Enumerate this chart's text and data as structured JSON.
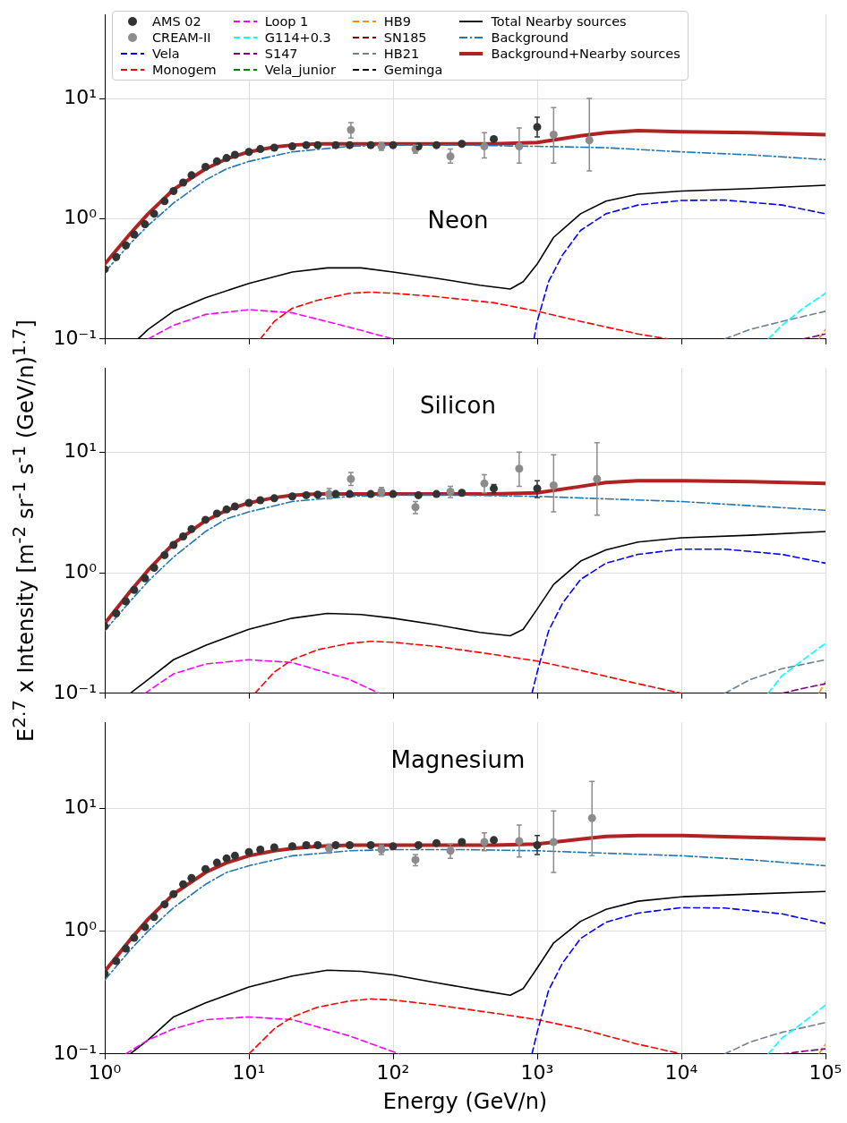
{
  "chart_data": [
    {
      "type": "line",
      "title": "Neon",
      "log": "xy",
      "grid": true,
      "legend": "top",
      "tick_labels": "y",
      "xlim": [
        1,
        100000
      ],
      "ylim": [
        0.1,
        50
      ],
      "xticks": [
        {
          "value": 1,
          "label": null
        },
        {
          "value": 10,
          "label": null
        },
        {
          "value": 100,
          "label": null
        },
        {
          "value": 1000,
          "label": null
        },
        {
          "value": 10000,
          "label": null
        },
        {
          "value": 100000,
          "label": null
        }
      ],
      "yticks": [
        {
          "value": 0.1,
          "label": "10⁻¹"
        },
        {
          "value": 1,
          "label": "10⁰"
        },
        {
          "value": 10,
          "label": "10¹"
        }
      ],
      "series": [
        {
          "name": "AMS 02",
          "type": "scatter",
          "marker": "circle",
          "color": "#333333",
          "x": [
            1,
            1.2,
            1.4,
            1.6,
            1.9,
            2.2,
            2.6,
            3,
            3.5,
            4,
            5,
            6,
            7,
            8,
            10,
            12,
            15,
            20,
            25,
            30,
            40,
            50,
            70,
            100,
            150,
            200,
            300,
            500,
            1000
          ],
          "values": [
            0.38,
            0.48,
            0.6,
            0.74,
            0.9,
            1.1,
            1.4,
            1.7,
            2.0,
            2.3,
            2.7,
            3.0,
            3.2,
            3.4,
            3.6,
            3.8,
            3.9,
            4.0,
            4.1,
            4.1,
            4.1,
            4.1,
            4.1,
            4.1,
            4.0,
            4.1,
            4.2,
            4.6,
            5.8
          ],
          "errors": [
            null,
            null,
            null,
            null,
            null,
            null,
            null,
            null,
            null,
            null,
            null,
            null,
            null,
            null,
            null,
            null,
            null,
            null,
            null,
            null,
            null,
            null,
            null,
            null,
            null,
            null,
            null,
            null,
            [
              4.8,
              7.0
            ]
          ]
        },
        {
          "name": "CREAM-II",
          "type": "scatter",
          "marker": "circle",
          "color": "#8c8c8c",
          "x": [
            51,
            83,
            143,
            250,
            430,
            750,
            1300,
            2300
          ],
          "values": [
            5.5,
            4.0,
            3.8,
            3.3,
            4.0,
            4.0,
            5.0,
            4.5
          ],
          "errors": [
            [
              4.7,
              6.3
            ],
            [
              3.7,
              4.3
            ],
            [
              3.5,
              4.1
            ],
            [
              2.9,
              3.8
            ],
            [
              3.2,
              5.2
            ],
            [
              2.9,
              5.7
            ],
            [
              2.9,
              8.4
            ],
            [
              2.5,
              10
            ]
          ]
        },
        {
          "name": "Vela",
          "color": "#0000ff",
          "line_style": "dashed",
          "x": [
            950,
            1000,
            1200,
            1500,
            2000,
            3000,
            5000,
            10000,
            20000,
            50000,
            100000
          ],
          "values": [
            0.1,
            0.14,
            0.3,
            0.5,
            0.8,
            1.1,
            1.3,
            1.42,
            1.43,
            1.3,
            1.1
          ]
        },
        {
          "name": "Monogem",
          "color": "#ff0000",
          "line_style": "dashed",
          "x": [
            12,
            15,
            20,
            30,
            50,
            70,
            100,
            200,
            500,
            1000,
            2000,
            5000,
            8000
          ],
          "values": [
            0.1,
            0.14,
            0.18,
            0.21,
            0.24,
            0.245,
            0.24,
            0.225,
            0.2,
            0.17,
            0.14,
            0.11,
            0.1
          ]
        },
        {
          "name": "Loop 1",
          "color": "#ff00ff",
          "line_style": "dashed",
          "x": [
            2,
            3,
            5,
            10,
            20,
            50,
            100
          ],
          "values": [
            0.1,
            0.13,
            0.16,
            0.175,
            0.165,
            0.125,
            0.1
          ]
        },
        {
          "name": "G114+0.3",
          "color": "#00ffff",
          "line_style": "dashed",
          "x": [
            40000,
            50000,
            70000,
            100000
          ],
          "values": [
            0.1,
            0.13,
            0.18,
            0.24
          ]
        },
        {
          "name": "S147",
          "color": "#800080",
          "line_style": "dashed",
          "x": [
            70000,
            100000
          ],
          "values": [
            0.1,
            0.11
          ]
        },
        {
          "name": "Vela_junior",
          "color": "#008000",
          "line_style": "dashed"
        },
        {
          "name": "HB9",
          "color": "#ff8c00",
          "line_style": "dashed",
          "x": [
            90000,
            100000
          ],
          "values": [
            0.1,
            0.12
          ]
        },
        {
          "name": "SN185",
          "color": "#8b0000",
          "line_style": "dashed"
        },
        {
          "name": "HB21",
          "color": "#708090",
          "line_style": "dashed",
          "x": [
            20000,
            30000,
            50000,
            100000
          ],
          "values": [
            0.1,
            0.12,
            0.14,
            0.17
          ]
        },
        {
          "name": "Geminga",
          "color": "#000000",
          "line_style": "dashed"
        },
        {
          "name": "Total Nearby sources",
          "color": "#000000",
          "line_style": "solid",
          "x": [
            1.7,
            2,
            3,
            5,
            10,
            20,
            35,
            60,
            100,
            200,
            400,
            650,
            800,
            1000,
            1300,
            2000,
            3000,
            5000,
            10000,
            30000,
            100000
          ],
          "values": [
            0.1,
            0.12,
            0.17,
            0.22,
            0.29,
            0.36,
            0.39,
            0.39,
            0.36,
            0.32,
            0.28,
            0.26,
            0.3,
            0.42,
            0.7,
            1.1,
            1.4,
            1.6,
            1.7,
            1.78,
            1.9
          ]
        },
        {
          "name": "Background",
          "color": "#1f77b4",
          "line_style": "dashdot",
          "x": [
            1,
            1.5,
            2,
            3,
            5,
            7,
            10,
            20,
            50,
            100,
            300,
            1000,
            3000,
            10000,
            30000,
            100000
          ],
          "values": [
            0.36,
            0.62,
            0.88,
            1.35,
            2.1,
            2.6,
            3.0,
            3.6,
            4.0,
            4.1,
            4.1,
            4.0,
            3.9,
            3.6,
            3.4,
            3.1
          ]
        },
        {
          "name": "Background+Nearby sources",
          "color": "#b22222",
          "line_style": "solid",
          "x": [
            1,
            1.5,
            2,
            3,
            5,
            7,
            10,
            15,
            20,
            30,
            50,
            100,
            200,
            500,
            1000,
            2000,
            3000,
            5000,
            10000,
            30000,
            100000
          ],
          "values": [
            0.42,
            0.75,
            1.1,
            1.75,
            2.6,
            3.15,
            3.6,
            3.95,
            4.1,
            4.2,
            4.2,
            4.2,
            4.2,
            4.2,
            4.3,
            4.9,
            5.2,
            5.4,
            5.3,
            5.2,
            5.0
          ]
        }
      ]
    },
    {
      "type": "line",
      "title": "Silicon",
      "log": "xy",
      "grid": true,
      "tick_labels": "y",
      "ylabel": "E$^{2.7}$ x Intensity [m$^{-2}$ sr$^{-1}$ s$^{-1}$ (GeV/n)$^{1.7}$]",
      "xlim": [
        1,
        100000
      ],
      "ylim": [
        0.1,
        50
      ],
      "xticks": [
        {
          "value": 1,
          "label": null
        },
        {
          "value": 10,
          "label": null
        },
        {
          "value": 100,
          "label": null
        },
        {
          "value": 1000,
          "label": null
        },
        {
          "value": 10000,
          "label": null
        },
        {
          "value": 100000,
          "label": null
        }
      ],
      "yticks": [
        {
          "value": 0.1,
          "label": "10⁻¹"
        },
        {
          "value": 1,
          "label": "10⁰"
        },
        {
          "value": 10,
          "label": "10¹"
        }
      ],
      "series": [
        {
          "type": "scatter",
          "marker": "circle",
          "color": "#333333",
          "x": [
            1,
            1.2,
            1.4,
            1.6,
            1.9,
            2.2,
            2.6,
            3,
            3.5,
            4,
            5,
            6,
            7,
            8,
            10,
            12,
            15,
            20,
            25,
            30,
            40,
            50,
            70,
            100,
            150,
            200,
            300,
            500,
            1000
          ],
          "values": [
            0.36,
            0.46,
            0.58,
            0.72,
            0.9,
            1.1,
            1.4,
            1.7,
            2.0,
            2.3,
            2.75,
            3.1,
            3.35,
            3.55,
            3.8,
            4.0,
            4.15,
            4.3,
            4.4,
            4.45,
            4.5,
            4.5,
            4.5,
            4.5,
            4.4,
            4.5,
            4.6,
            5.0,
            5.0
          ],
          "errors": [
            null,
            null,
            null,
            null,
            null,
            null,
            null,
            null,
            null,
            null,
            null,
            null,
            null,
            null,
            null,
            null,
            null,
            null,
            null,
            null,
            null,
            null,
            null,
            null,
            null,
            null,
            null,
            [
              4.6,
              5.4
            ],
            [
              4.2,
              5.8
            ]
          ]
        },
        {
          "type": "scatter",
          "marker": "circle",
          "color": "#8c8c8c",
          "x": [
            36,
            51,
            83,
            143,
            250,
            430,
            750,
            1300,
            2600
          ],
          "values": [
            4.5,
            6.0,
            4.7,
            3.5,
            4.7,
            5.5,
            7.3,
            5.3,
            6.0
          ],
          "errors": [
            [
              4.1,
              5.0
            ],
            [
              5.3,
              6.8
            ],
            [
              4.3,
              5.1
            ],
            [
              3.1,
              3.9
            ],
            [
              4.2,
              5.2
            ],
            [
              4.6,
              6.5
            ],
            [
              5.2,
              10
            ],
            [
              3.2,
              9.5
            ],
            [
              3.0,
              12
            ]
          ]
        },
        {
          "color": "#0000ff",
          "line_style": "dashed",
          "x": [
            920,
            1000,
            1200,
            1500,
            2000,
            3000,
            5000,
            10000,
            20000,
            50000,
            100000
          ],
          "values": [
            0.1,
            0.15,
            0.33,
            0.56,
            0.88,
            1.2,
            1.42,
            1.57,
            1.57,
            1.42,
            1.2
          ]
        },
        {
          "color": "#ff0000",
          "line_style": "dashed",
          "x": [
            11,
            15,
            20,
            30,
            50,
            70,
            100,
            200,
            500,
            1000,
            2000,
            5000,
            10000
          ],
          "values": [
            0.1,
            0.15,
            0.19,
            0.23,
            0.26,
            0.27,
            0.265,
            0.245,
            0.21,
            0.185,
            0.155,
            0.12,
            0.1
          ]
        },
        {
          "color": "#ff00ff",
          "line_style": "dashed",
          "x": [
            1.9,
            3,
            5,
            10,
            20,
            50,
            80
          ],
          "values": [
            0.1,
            0.145,
            0.175,
            0.19,
            0.18,
            0.13,
            0.1
          ]
        },
        {
          "color": "#00ffff",
          "line_style": "dashed",
          "x": [
            40000,
            50000,
            70000,
            100000
          ],
          "values": [
            0.1,
            0.14,
            0.19,
            0.26
          ]
        },
        {
          "color": "#800080",
          "line_style": "dashed",
          "x": [
            50000,
            70000,
            100000
          ],
          "values": [
            0.1,
            0.11,
            0.12
          ]
        },
        {
          "color": "#ff8c00",
          "line_style": "dashed",
          "x": [
            90000,
            100000
          ],
          "values": [
            0.1,
            0.125
          ]
        },
        {
          "color": "#708090",
          "line_style": "dashed",
          "x": [
            20000,
            30000,
            50000,
            100000
          ],
          "values": [
            0.1,
            0.13,
            0.16,
            0.19
          ]
        },
        {
          "color": "#000000",
          "line_style": "solid",
          "x": [
            1.5,
            2,
            3,
            5,
            10,
            20,
            35,
            60,
            100,
            200,
            400,
            650,
            800,
            1000,
            1300,
            2000,
            3000,
            5000,
            10000,
            30000,
            100000
          ],
          "values": [
            0.1,
            0.13,
            0.19,
            0.25,
            0.34,
            0.42,
            0.46,
            0.45,
            0.42,
            0.37,
            0.32,
            0.3,
            0.34,
            0.5,
            0.8,
            1.25,
            1.55,
            1.8,
            1.95,
            2.05,
            2.2
          ]
        },
        {
          "color": "#1f77b4",
          "line_style": "dashdot",
          "x": [
            1,
            1.5,
            2,
            3,
            5,
            7,
            10,
            20,
            50,
            100,
            300,
            1000,
            3000,
            10000,
            30000,
            100000
          ],
          "values": [
            0.33,
            0.58,
            0.85,
            1.35,
            2.2,
            2.8,
            3.2,
            3.9,
            4.3,
            4.4,
            4.4,
            4.3,
            4.1,
            3.9,
            3.6,
            3.3
          ]
        },
        {
          "color": "#b22222",
          "line_style": "solid",
          "x": [
            1,
            1.5,
            2,
            3,
            5,
            7,
            10,
            15,
            20,
            30,
            50,
            100,
            200,
            500,
            1000,
            2000,
            3000,
            5000,
            10000,
            30000,
            100000
          ],
          "values": [
            0.38,
            0.7,
            1.05,
            1.75,
            2.7,
            3.3,
            3.8,
            4.2,
            4.4,
            4.5,
            4.5,
            4.5,
            4.5,
            4.5,
            4.6,
            5.2,
            5.6,
            5.8,
            5.8,
            5.7,
            5.5
          ]
        }
      ]
    },
    {
      "type": "line",
      "title": "Magnesium",
      "log": "xy",
      "grid": true,
      "xlabel": "Energy (GeV/n)",
      "xlim": [
        1,
        100000
      ],
      "ylim": [
        0.1,
        50
      ],
      "xticks": [
        {
          "value": 1,
          "label": "10⁰"
        },
        {
          "value": 10,
          "label": "10¹"
        },
        {
          "value": 100,
          "label": "10²"
        },
        {
          "value": 1000,
          "label": "10³"
        },
        {
          "value": 10000,
          "label": "10⁴"
        },
        {
          "value": 100000,
          "label": "10⁵"
        }
      ],
      "yticks": [
        {
          "value": 0.1,
          "label": "10⁻¹"
        },
        {
          "value": 1,
          "label": "10⁰"
        },
        {
          "value": 10,
          "label": "10¹"
        }
      ],
      "series": [
        {
          "type": "scatter",
          "marker": "circle",
          "color": "#333333",
          "x": [
            1,
            1.2,
            1.4,
            1.6,
            1.9,
            2.2,
            2.6,
            3,
            3.5,
            4,
            5,
            6,
            7,
            8,
            10,
            12,
            15,
            20,
            25,
            30,
            40,
            50,
            70,
            100,
            150,
            200,
            300,
            500,
            1000
          ],
          "values": [
            0.45,
            0.57,
            0.72,
            0.88,
            1.08,
            1.3,
            1.65,
            2.0,
            2.4,
            2.7,
            3.2,
            3.6,
            3.9,
            4.1,
            4.4,
            4.6,
            4.8,
            4.9,
            5.0,
            5.0,
            5.0,
            5.0,
            5.0,
            4.9,
            5.0,
            5.2,
            5.3,
            5.5,
            5.0
          ],
          "errors": [
            null,
            null,
            null,
            null,
            null,
            null,
            null,
            null,
            null,
            null,
            null,
            null,
            null,
            null,
            null,
            null,
            null,
            null,
            null,
            null,
            null,
            null,
            null,
            null,
            null,
            null,
            null,
            null,
            [
              4.2,
              6.0
            ]
          ]
        },
        {
          "type": "scatter",
          "marker": "circle",
          "color": "#8c8c8c",
          "x": [
            36,
            83,
            143,
            250,
            430,
            750,
            1300,
            2400
          ],
          "values": [
            4.7,
            4.6,
            3.8,
            4.5,
            5.3,
            5.4,
            5.3,
            8.3
          ],
          "errors": [
            [
              4.3,
              5.1
            ],
            [
              4.2,
              5.0
            ],
            [
              3.4,
              4.2
            ],
            [
              3.9,
              5.1
            ],
            [
              4.5,
              6.3
            ],
            [
              4.0,
              7.3
            ],
            [
              3.0,
              9.5
            ],
            [
              4.1,
              16.5
            ]
          ]
        },
        {
          "color": "#0000ff",
          "line_style": "dashed",
          "x": [
            920,
            1000,
            1200,
            1500,
            2000,
            3000,
            5000,
            10000,
            20000,
            50000,
            100000
          ],
          "values": [
            0.1,
            0.15,
            0.33,
            0.55,
            0.87,
            1.18,
            1.4,
            1.55,
            1.54,
            1.38,
            1.15
          ]
        },
        {
          "color": "#ff0000",
          "line_style": "dashed",
          "x": [
            10,
            15,
            20,
            30,
            50,
            70,
            100,
            200,
            500,
            1000,
            2000,
            5000,
            10000
          ],
          "values": [
            0.1,
            0.16,
            0.2,
            0.24,
            0.27,
            0.28,
            0.275,
            0.25,
            0.215,
            0.19,
            0.16,
            0.12,
            0.1
          ]
        },
        {
          "color": "#ff00ff",
          "line_style": "dashed",
          "x": [
            1.4,
            2,
            3,
            5,
            10,
            20,
            50,
            110
          ],
          "values": [
            0.1,
            0.13,
            0.16,
            0.19,
            0.2,
            0.19,
            0.14,
            0.1
          ]
        },
        {
          "color": "#00ffff",
          "line_style": "dashed",
          "x": [
            40000,
            50000,
            70000,
            100000
          ],
          "values": [
            0.1,
            0.135,
            0.18,
            0.25
          ]
        },
        {
          "color": "#800080",
          "line_style": "dashed",
          "x": [
            50000,
            70000,
            100000
          ],
          "values": [
            0.1,
            0.105,
            0.11
          ]
        },
        {
          "color": "#ff8c00",
          "line_style": "dashed",
          "x": [
            90000,
            100000
          ],
          "values": [
            0.1,
            0.12
          ]
        },
        {
          "color": "#708090",
          "line_style": "dashed",
          "x": [
            20000,
            30000,
            50000,
            100000
          ],
          "values": [
            0.1,
            0.125,
            0.15,
            0.18
          ]
        },
        {
          "color": "#000000",
          "line_style": "solid",
          "x": [
            1.5,
            2,
            3,
            5,
            10,
            20,
            35,
            60,
            100,
            200,
            400,
            650,
            800,
            1000,
            1300,
            2000,
            3000,
            5000,
            10000,
            30000,
            100000
          ],
          "values": [
            0.1,
            0.13,
            0.2,
            0.26,
            0.35,
            0.43,
            0.48,
            0.47,
            0.44,
            0.38,
            0.33,
            0.3,
            0.34,
            0.5,
            0.8,
            1.2,
            1.5,
            1.75,
            1.9,
            2.0,
            2.1
          ]
        },
        {
          "color": "#1f77b4",
          "line_style": "dashdot",
          "x": [
            1,
            1.5,
            2,
            3,
            5,
            7,
            10,
            20,
            50,
            100,
            300,
            1000,
            3000,
            10000,
            30000,
            100000
          ],
          "values": [
            0.4,
            0.7,
            1.0,
            1.55,
            2.4,
            3.0,
            3.4,
            4.1,
            4.5,
            4.6,
            4.6,
            4.5,
            4.3,
            4.1,
            3.8,
            3.4
          ]
        },
        {
          "color": "#b22222",
          "line_style": "solid",
          "x": [
            1,
            1.5,
            2,
            3,
            5,
            7,
            10,
            15,
            20,
            30,
            50,
            100,
            200,
            500,
            1000,
            2000,
            3000,
            5000,
            10000,
            30000,
            100000
          ],
          "values": [
            0.47,
            0.85,
            1.25,
            2.0,
            3.0,
            3.6,
            4.1,
            4.5,
            4.7,
            4.9,
            5.0,
            5.0,
            5.0,
            5.0,
            5.1,
            5.6,
            5.9,
            6.0,
            6.0,
            5.8,
            5.6
          ]
        }
      ]
    }
  ]
}
